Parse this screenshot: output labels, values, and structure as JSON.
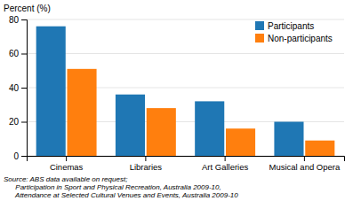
{
  "chart_data": {
    "type": "bar",
    "y_label": "Percent (%)",
    "categories": [
      "Cinemas",
      "Libraries",
      "Art Galleries",
      "Musical and Opera"
    ],
    "series": [
      {
        "name": "Participants",
        "values": [
          76,
          36,
          32,
          20
        ]
      },
      {
        "name": "Non-participants",
        "values": [
          51,
          28,
          16,
          9
        ]
      }
    ],
    "ylim": [
      0,
      80
    ],
    "yticks": [
      0,
      20,
      40,
      60,
      80
    ],
    "grid": true,
    "legend": "upper right",
    "annotations": [
      "Source: ABS data available on request;",
      "      Participation in Sport and Physical Recreation, Australia 2009-10,",
      "      Attendance at Selected Cultural Venues and Events, Australia 2009-10"
    ]
  }
}
